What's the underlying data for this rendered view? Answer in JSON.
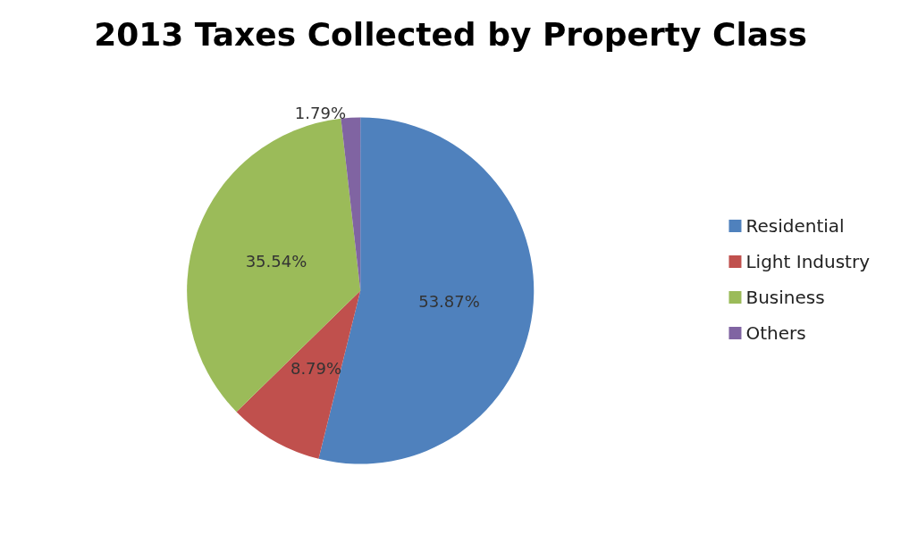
{
  "chart_data": {
    "type": "pie",
    "title": "2013 Taxes Collected by Property Class",
    "categories": [
      "Residential",
      "Light Industry",
      "Business",
      "Others"
    ],
    "values": [
      53.87,
      8.79,
      35.54,
      1.79
    ],
    "colors": [
      "#4f81bd",
      "#c0504d",
      "#9bbb59",
      "#8064a2"
    ],
    "value_labels": [
      "53.87%",
      "8.79%",
      "35.54%",
      "1.79%"
    ],
    "legend": "right"
  }
}
